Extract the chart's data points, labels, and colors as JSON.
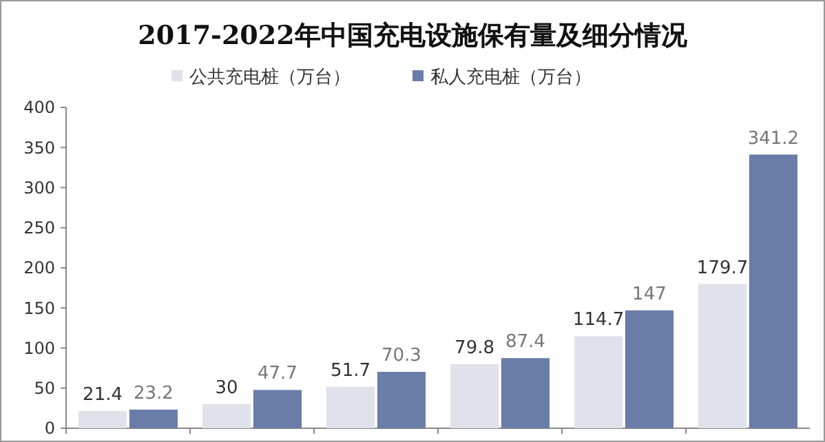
{
  "chart_data": {
    "type": "bar",
    "title": "2017-2022年中国充电设施保有量及细分情况",
    "categories": [
      null,
      null,
      null,
      null,
      null,
      null
    ],
    "series": [
      {
        "name": "公共充电桩（万台）",
        "color": "#dfe2ea",
        "values": [
          21.4,
          30,
          51.7,
          79.8,
          114.7,
          179.7
        ]
      },
      {
        "name": "私人充电桩（万台）",
        "color": "#6a7da8",
        "values": [
          23.2,
          47.7,
          70.3,
          87.4,
          147,
          341.2
        ]
      }
    ],
    "ylim": [
      0,
      400
    ],
    "yticks": [
      0,
      50,
      100,
      150,
      200,
      250,
      300,
      350,
      400
    ],
    "data_labels": true,
    "legend": "top",
    "grid": false
  }
}
